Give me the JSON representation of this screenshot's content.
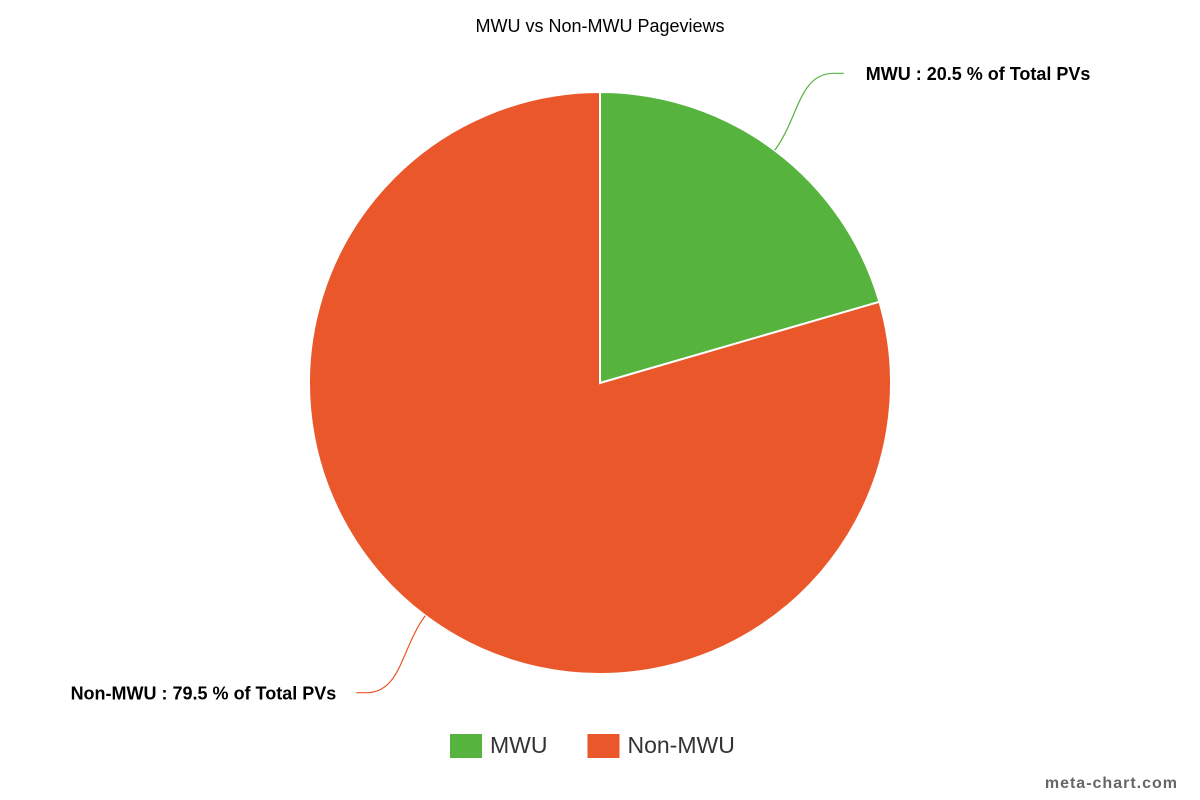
{
  "chart_data": {
    "type": "pie",
    "title": "MWU vs Non-MWU Pageviews",
    "categories": [
      "MWU",
      "Non-MWU"
    ],
    "values": [
      20.5,
      79.5
    ],
    "value_labels": [
      "MWU : 20.5 % of Total PVs",
      "Non-MWU : 79.5 % of Total PVs"
    ],
    "colors": [
      "#55b33e",
      "#ea572b"
    ],
    "legend": "bottom",
    "credit": "meta-chart.com"
  }
}
